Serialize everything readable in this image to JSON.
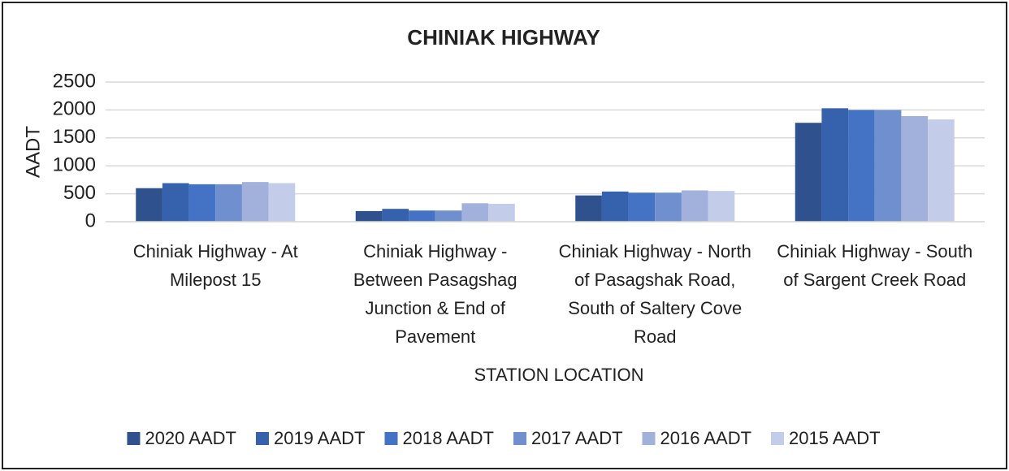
{
  "chart_data": {
    "type": "bar",
    "title": "CHINIAK HIGHWAY",
    "x_label": "STATION LOCATION",
    "y_label": "AADT",
    "categories": [
      "Chiniak Highway - At Milepost 15",
      "Chiniak Highway - Between Pasagshag Junction & End of Pavement",
      "Chiniak Highway - North of Pasagshak Road, South of Saltery Cove Road",
      "Chiniak Highway - South of Sargent Creek Road"
    ],
    "series": [
      {
        "name": "2020 AADT",
        "color": "#2f528f",
        "values": [
          600,
          190,
          470,
          1770
        ]
      },
      {
        "name": "2019 AADT",
        "color": "#3561ad",
        "values": [
          690,
          230,
          540,
          2030
        ]
      },
      {
        "name": "2018 AADT",
        "color": "#4472c4",
        "values": [
          670,
          200,
          520,
          2000
        ]
      },
      {
        "name": "2017 AADT",
        "color": "#6f8fcf",
        "values": [
          670,
          200,
          520,
          2000
        ]
      },
      {
        "name": "2016 AADT",
        "color": "#a1b1dc",
        "values": [
          710,
          330,
          560,
          1890
        ]
      },
      {
        "name": "2015 AADT",
        "color": "#c3cce8",
        "values": [
          690,
          320,
          550,
          1830
        ]
      }
    ],
    "ylim": [
      0,
      2500
    ],
    "yticks": [
      0,
      500,
      1000,
      1500,
      2000,
      2500
    ],
    "grid": true,
    "legend": "bottom"
  }
}
